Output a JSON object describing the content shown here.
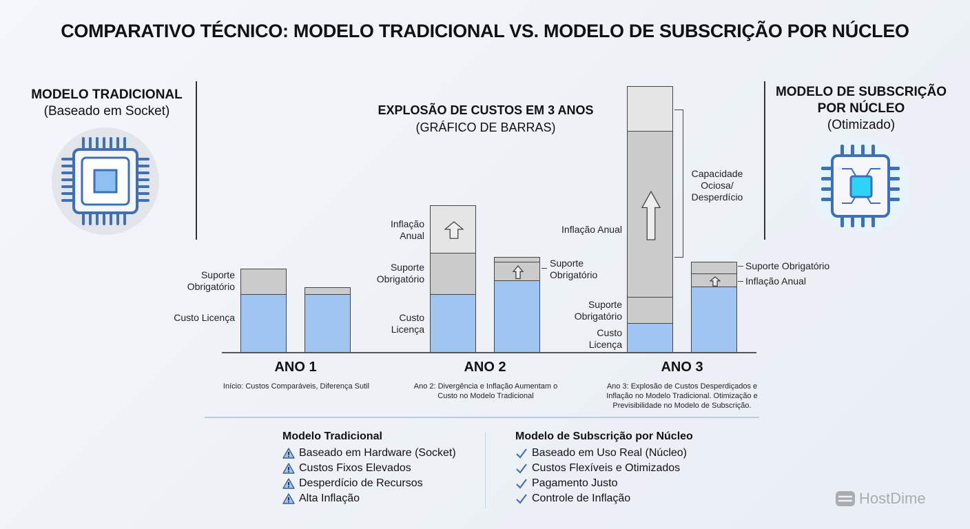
{
  "title": "COMPARATIVO TÉCNICO: MODELO TRADICIONAL VS. MODELO DE SUBSCRIÇÃO POR NÚCLEO",
  "left_model": {
    "title": "MODELO TRADICIONAL",
    "subtitle": "(Baseado em Socket)"
  },
  "right_model": {
    "title_line1": "MODELO DE SUBSCRIÇÃO",
    "title_line2": "POR NÚCLEO",
    "subtitle": "(Otimizado)"
  },
  "colors": {
    "license": "#9fc5f0",
    "support": "#cbcbcb",
    "inflation": "#e5e5e5",
    "waste": "#e5e5e5",
    "accent": "#4a8fe0"
  },
  "labels": {
    "suporte": "Suporte Obrigatório",
    "custo": "Custo Licença",
    "inflacao": "Inflação Anual",
    "capacidade": "Capacidade Ociosa/ Desperdício"
  },
  "chart_data": {
    "type": "bar",
    "stacked": true,
    "title": "EXPLOSÃO DE CUSTOS EM 3 ANOS",
    "subtitle": "(GRÁFICO DE BARRAS)",
    "categories": [
      "ANO 1",
      "ANO 2",
      "ANO 3"
    ],
    "series_groups": [
      "Modelo Tradicional",
      "Modelo de Subscrição por Núcleo"
    ],
    "units": "relative cost index (approx.)",
    "ylim": [
      0,
      460
    ],
    "bars": [
      {
        "year": 0,
        "model": 0,
        "segments": [
          {
            "name": "Custo Licença",
            "value": 100
          },
          {
            "name": "Suporte Obrigatório",
            "value": 44
          }
        ]
      },
      {
        "year": 0,
        "model": 1,
        "segments": [
          {
            "name": "Custo Licença",
            "value": 100
          },
          {
            "name": "Suporte Obrigatório",
            "value": 12
          }
        ]
      },
      {
        "year": 1,
        "model": 0,
        "segments": [
          {
            "name": "Custo Licença",
            "value": 100
          },
          {
            "name": "Suporte Obrigatório",
            "value": 71
          },
          {
            "name": "Inflação Anual",
            "value": 81,
            "arrow": true
          }
        ]
      },
      {
        "year": 1,
        "model": 1,
        "segments": [
          {
            "name": "Custo Licença",
            "value": 124
          },
          {
            "name": "Inflação Anual",
            "value": 31,
            "arrow": true
          },
          {
            "name": "Suporte Obrigatório",
            "value": 8
          }
        ]
      },
      {
        "year": 2,
        "model": 0,
        "segments": [
          {
            "name": "Custo Licença",
            "value": 51
          },
          {
            "name": "Suporte Obrigatório",
            "value": 44
          },
          {
            "name": "Inflação Anual",
            "value": 284,
            "arrow": true
          },
          {
            "name": "Capacidade Ociosa/Desperdício",
            "value": 76
          }
        ]
      },
      {
        "year": 2,
        "model": 1,
        "segments": [
          {
            "name": "Custo Licença",
            "value": 113
          },
          {
            "name": "Inflação Anual",
            "value": 22,
            "arrow": true
          },
          {
            "name": "Suporte Obrigatório",
            "value": 20
          }
        ]
      }
    ],
    "notes": [
      "Início: Custos Comparáveis, Diferença Sutil",
      "Ano 2: Divergência e Inflação Aumentam o Custo no Modelo Tradicional",
      "Ano 3: Explosão de Custos Desperdiçados e Inflação no Modelo Tradicional. Otimização e Previsibilidade no Modelo de Subscrição."
    ]
  },
  "legend": {
    "traditional": {
      "title": "Modelo Tradicional",
      "items": [
        "Baseado em Hardware (Socket)",
        "Custos Fixos Elevados",
        "Desperdício de Recursos",
        "Alta Inflação"
      ]
    },
    "subscription": {
      "title": "Modelo de Subscrição por Núcleo",
      "items": [
        "Baseado em Uso Real (Núcleo)",
        "Custos Flexíveis e Otimizados",
        "Pagamento Justo",
        "Controle de Inflação"
      ]
    }
  },
  "brand": "HostDime"
}
